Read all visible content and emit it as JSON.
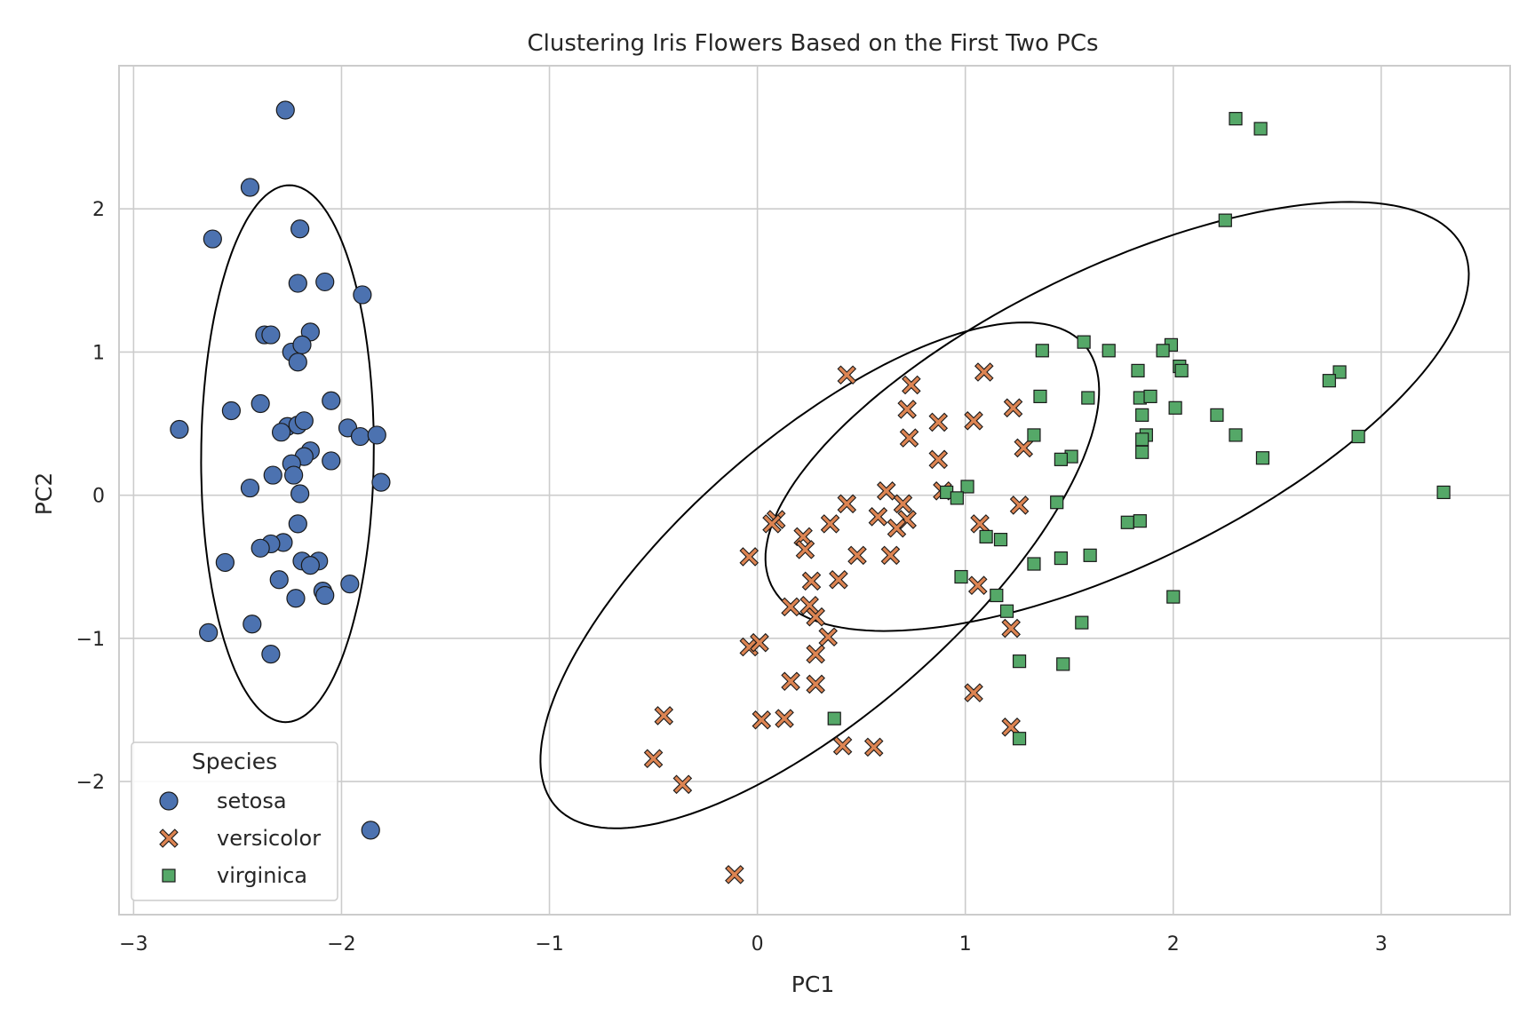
{
  "chart_data": {
    "type": "scatter",
    "title": "Clustering Iris Flowers Based on the First Two PCs",
    "xlabel": "PC1",
    "ylabel": "PC2",
    "xlim": [
      -3.07,
      3.62
    ],
    "ylim": [
      -2.93,
      3.0
    ],
    "xticks": [
      -3,
      -2,
      -1,
      0,
      1,
      2,
      3
    ],
    "xtick_labels": [
      "−3",
      "−2",
      "−1",
      "0",
      "1",
      "2",
      "3"
    ],
    "yticks": [
      -2,
      -1,
      0,
      1,
      2
    ],
    "ytick_labels": [
      "−2",
      "−1",
      "0",
      "1",
      "2"
    ],
    "grid": true,
    "legend": {
      "title": "Species",
      "placement": "lower-left",
      "entries": [
        "setosa",
        "versicolor",
        "virginica"
      ]
    },
    "colors": {
      "setosa": "#4c72b0",
      "versicolor": "#dd8452",
      "virginica": "#55a868",
      "ellipse": "#000000",
      "grid": "#cccccc",
      "spine": "#cccccc"
    },
    "markers": {
      "setosa": "circle",
      "versicolor": "x",
      "virginica": "square"
    },
    "series": [
      {
        "name": "setosa",
        "points": [
          [
            -2.27,
            2.69
          ],
          [
            -2.44,
            2.15
          ],
          [
            -2.62,
            1.79
          ],
          [
            -2.2,
            1.86
          ],
          [
            -2.21,
            1.48
          ],
          [
            -2.08,
            1.49
          ],
          [
            -1.9,
            1.4
          ],
          [
            -2.37,
            1.12
          ],
          [
            -2.34,
            1.12
          ],
          [
            -2.15,
            1.14
          ],
          [
            -2.24,
            1.0
          ],
          [
            -2.19,
            1.05
          ],
          [
            -2.21,
            0.93
          ],
          [
            -2.05,
            0.66
          ],
          [
            -2.53,
            0.59
          ],
          [
            -2.39,
            0.64
          ],
          [
            -2.78,
            0.46
          ],
          [
            -2.26,
            0.48
          ],
          [
            -2.29,
            0.44
          ],
          [
            -2.21,
            0.49
          ],
          [
            -2.18,
            0.52
          ],
          [
            -1.97,
            0.47
          ],
          [
            -1.91,
            0.41
          ],
          [
            -1.83,
            0.42
          ],
          [
            -2.15,
            0.31
          ],
          [
            -2.18,
            0.27
          ],
          [
            -2.05,
            0.24
          ],
          [
            -2.24,
            0.22
          ],
          [
            -2.33,
            0.14
          ],
          [
            -2.23,
            0.14
          ],
          [
            -1.81,
            0.09
          ],
          [
            -2.44,
            0.05
          ],
          [
            -2.2,
            0.01
          ],
          [
            -2.21,
            -0.2
          ],
          [
            -2.28,
            -0.33
          ],
          [
            -2.34,
            -0.34
          ],
          [
            -2.39,
            -0.37
          ],
          [
            -2.56,
            -0.47
          ],
          [
            -2.19,
            -0.46
          ],
          [
            -2.11,
            -0.46
          ],
          [
            -2.15,
            -0.49
          ],
          [
            -2.3,
            -0.59
          ],
          [
            -1.96,
            -0.62
          ],
          [
            -2.09,
            -0.67
          ],
          [
            -2.08,
            -0.7
          ],
          [
            -2.22,
            -0.72
          ],
          [
            -2.43,
            -0.9
          ],
          [
            -2.64,
            -0.96
          ],
          [
            -2.34,
            -1.11
          ],
          [
            -1.86,
            -2.34
          ]
        ]
      },
      {
        "name": "versicolor",
        "points": [
          [
            0.43,
            0.84
          ],
          [
            0.74,
            0.77
          ],
          [
            1.09,
            0.86
          ],
          [
            0.72,
            0.6
          ],
          [
            1.23,
            0.61
          ],
          [
            1.04,
            0.52
          ],
          [
            0.87,
            0.51
          ],
          [
            0.73,
            0.4
          ],
          [
            1.28,
            0.33
          ],
          [
            0.87,
            0.25
          ],
          [
            0.89,
            0.03
          ],
          [
            0.62,
            0.03
          ],
          [
            0.43,
            -0.06
          ],
          [
            0.7,
            -0.06
          ],
          [
            1.26,
            -0.07
          ],
          [
            0.58,
            -0.15
          ],
          [
            0.72,
            -0.17
          ],
          [
            0.09,
            -0.17
          ],
          [
            0.07,
            -0.2
          ],
          [
            0.35,
            -0.2
          ],
          [
            1.07,
            -0.2
          ],
          [
            0.22,
            -0.29
          ],
          [
            0.67,
            -0.23
          ],
          [
            0.23,
            -0.38
          ],
          [
            -0.04,
            -0.43
          ],
          [
            0.48,
            -0.42
          ],
          [
            0.64,
            -0.42
          ],
          [
            0.26,
            -0.6
          ],
          [
            0.39,
            -0.59
          ],
          [
            1.06,
            -0.63
          ],
          [
            0.16,
            -0.78
          ],
          [
            0.25,
            -0.77
          ],
          [
            0.28,
            -0.85
          ],
          [
            1.22,
            -0.93
          ],
          [
            0.34,
            -0.99
          ],
          [
            -0.04,
            -1.06
          ],
          [
            0.01,
            -1.03
          ],
          [
            0.28,
            -1.11
          ],
          [
            0.16,
            -1.3
          ],
          [
            0.28,
            -1.32
          ],
          [
            1.04,
            -1.38
          ],
          [
            -0.45,
            -1.54
          ],
          [
            0.02,
            -1.57
          ],
          [
            0.13,
            -1.56
          ],
          [
            1.22,
            -1.62
          ],
          [
            0.41,
            -1.75
          ],
          [
            0.56,
            -1.76
          ],
          [
            -0.5,
            -1.84
          ],
          [
            -0.36,
            -2.02
          ],
          [
            -0.11,
            -2.65
          ]
        ]
      },
      {
        "name": "virginica",
        "points": [
          [
            2.3,
            2.63
          ],
          [
            2.42,
            2.56
          ],
          [
            2.25,
            1.92
          ],
          [
            1.57,
            1.07
          ],
          [
            1.99,
            1.05
          ],
          [
            1.37,
            1.01
          ],
          [
            1.69,
            1.01
          ],
          [
            1.95,
            1.01
          ],
          [
            2.03,
            0.9
          ],
          [
            2.04,
            0.87
          ],
          [
            1.83,
            0.87
          ],
          [
            2.8,
            0.86
          ],
          [
            2.75,
            0.8
          ],
          [
            1.36,
            0.69
          ],
          [
            1.59,
            0.68
          ],
          [
            1.84,
            0.68
          ],
          [
            1.89,
            0.69
          ],
          [
            2.01,
            0.61
          ],
          [
            1.85,
            0.56
          ],
          [
            2.21,
            0.56
          ],
          [
            1.87,
            0.42
          ],
          [
            1.33,
            0.42
          ],
          [
            2.3,
            0.42
          ],
          [
            2.89,
            0.41
          ],
          [
            1.85,
            0.39
          ],
          [
            1.85,
            0.3
          ],
          [
            1.51,
            0.27
          ],
          [
            1.46,
            0.25
          ],
          [
            2.43,
            0.26
          ],
          [
            3.3,
            0.02
          ],
          [
            0.91,
            0.02
          ],
          [
            1.01,
            0.06
          ],
          [
            0.96,
            -0.02
          ],
          [
            1.44,
            -0.05
          ],
          [
            1.78,
            -0.19
          ],
          [
            1.84,
            -0.18
          ],
          [
            1.1,
            -0.29
          ],
          [
            1.17,
            -0.31
          ],
          [
            1.33,
            -0.48
          ],
          [
            1.46,
            -0.44
          ],
          [
            1.6,
            -0.42
          ],
          [
            0.98,
            -0.57
          ],
          [
            1.15,
            -0.7
          ],
          [
            1.2,
            -0.81
          ],
          [
            2.0,
            -0.71
          ],
          [
            1.56,
            -0.89
          ],
          [
            1.26,
            -1.16
          ],
          [
            0.37,
            -1.56
          ],
          [
            1.26,
            -1.7
          ],
          [
            1.47,
            -1.18
          ]
        ]
      }
    ],
    "ellipses": [
      {
        "group": "setosa",
        "center": [
          -2.26,
          0.29
        ],
        "semi_axis_a": 1.875,
        "semi_axis_b": 0.415,
        "angle_deg": 89.7
      },
      {
        "group": "versicolor",
        "center": [
          0.3,
          -0.56
        ],
        "semi_axis_a": 2.078,
        "semi_axis_b": 0.78,
        "angle_deg": 55.4
      },
      {
        "group": "virginica",
        "center": [
          1.73,
          0.55
        ],
        "semi_axis_a": 2.063,
        "semi_axis_b": 0.922,
        "angle_deg": 39.8
      }
    ]
  }
}
